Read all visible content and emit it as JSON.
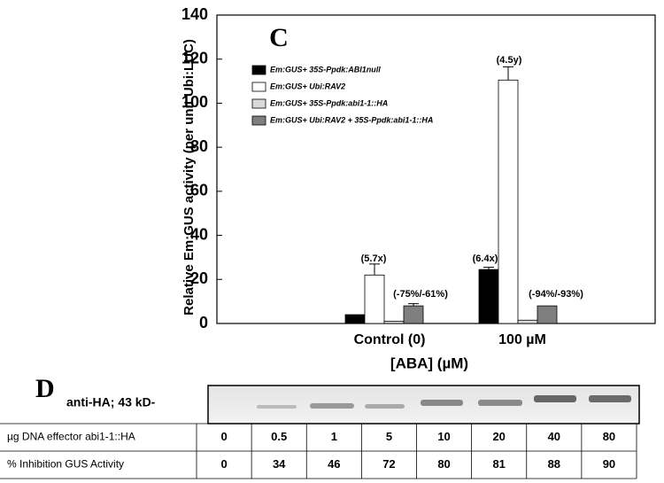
{
  "chart_data": {
    "type": "bar",
    "panel_label": "C",
    "y_label": "Relative Em:GUS activity (per unit Ubi:LUC)",
    "x_label": "[ABA] (µM)",
    "categories": [
      "Control  (0)",
      "100 µM"
    ],
    "series": [
      {
        "name": "Em:GUS+ 35S-Ppdk:ABI1null",
        "color": "#000000",
        "values": [
          4,
          24.5
        ],
        "errors": [
          0,
          1
        ]
      },
      {
        "name": "Em:GUS+ Ubi:RAV2",
        "color": "#ffffff",
        "values": [
          22,
          110.5
        ],
        "errors": [
          5,
          6
        ]
      },
      {
        "name": "Em:GUS+ 35S-Ppdk:abi1-1::HA",
        "color": "#d9d9d9",
        "values": [
          1,
          1.5
        ],
        "errors": [
          0,
          0
        ]
      },
      {
        "name": "Em:GUS+ Ubi:RAV2 + 35S-Ppdk:abi1-1::HA",
        "color": "#7f7f7f",
        "values": [
          8,
          8
        ],
        "errors": [
          1,
          0
        ]
      }
    ],
    "annotations": [
      "(5.7x)",
      "(-75%/-61%)",
      "(6.4x)",
      "(4.5y)",
      "(-94%/-93%)"
    ],
    "ylim": [
      0,
      140
    ],
    "yticks": [
      0,
      20,
      40,
      60,
      80,
      100,
      120,
      140
    ],
    "legend": "upper left"
  },
  "blot": {
    "panel_label": "D",
    "label": "anti-HA; 43 kD-"
  },
  "table": {
    "rows": [
      [
        "µg DNA effector abi1-1::HA",
        0,
        0.5,
        1,
        5,
        10,
        20,
        40,
        80
      ],
      [
        "% Inhibition GUS Activity",
        0,
        34,
        46,
        72,
        80,
        81,
        88,
        90
      ]
    ]
  }
}
